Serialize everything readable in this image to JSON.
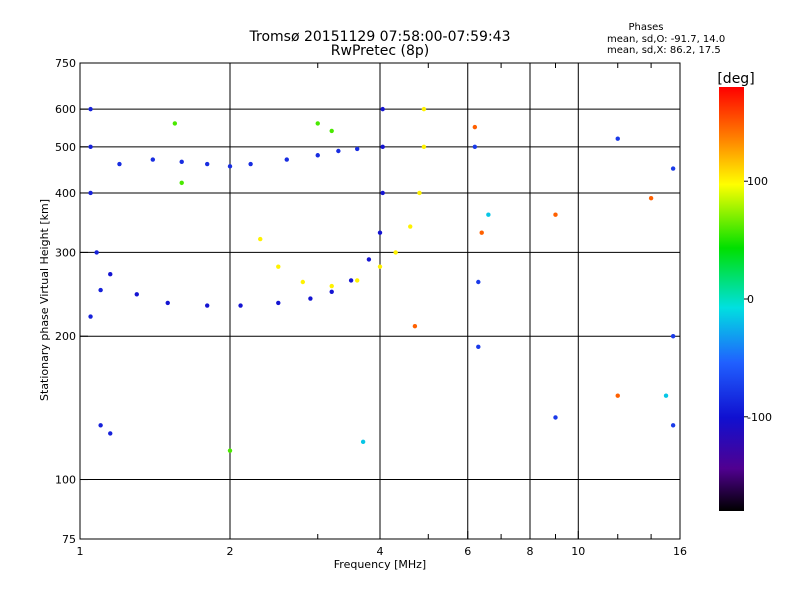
{
  "chart_data": {
    "type": "scatter",
    "title": "Tromsø 20151129 07:58:00-07:59:43",
    "subtitle": "RwPretec (8p)",
    "stats": {
      "header": "Phases",
      "line_o": "mean, sd,O: -91.7, 14.0",
      "line_x": "mean, sd,X: 86.2, 17.5"
    },
    "xlabel": "Frequency [MHz]",
    "ylabel": "Stationary phase Virtual Height [km]",
    "xscale": "log",
    "yscale": "log",
    "xlim": [
      1,
      16
    ],
    "ylim": [
      75,
      750
    ],
    "xticks": [
      1,
      2,
      4,
      6,
      8,
      10,
      16
    ],
    "xtick_labels": [
      "1",
      "2",
      "4",
      "6",
      "8",
      "10",
      "16"
    ],
    "xminor": [
      3,
      5,
      7,
      9,
      12,
      14
    ],
    "yticks": [
      75,
      100,
      200,
      300,
      400,
      500,
      600,
      750
    ],
    "ytick_labels": [
      "75",
      "100",
      "200",
      "300",
      "400",
      "500",
      "600",
      "750"
    ],
    "colorbar": {
      "label": "[deg]",
      "range": [
        -180,
        180
      ],
      "ticks": [
        100,
        0,
        -100
      ],
      "tick_labels": [
        "100",
        "0",
        "-100"
      ]
    },
    "grid": true,
    "series": [
      {
        "color_value": -100,
        "points": [
          [
            1.2,
            460
          ],
          [
            1.4,
            470
          ],
          [
            1.6,
            465
          ],
          [
            1.8,
            460
          ],
          [
            2.0,
            455
          ],
          [
            2.2,
            460
          ],
          [
            2.6,
            470
          ],
          [
            3.0,
            480
          ],
          [
            3.3,
            490
          ],
          [
            3.6,
            495
          ]
        ]
      },
      {
        "color_value": -110,
        "points": [
          [
            1.15,
            270
          ],
          [
            1.3,
            245
          ],
          [
            1.5,
            235
          ],
          [
            1.8,
            232
          ],
          [
            2.1,
            232
          ],
          [
            2.5,
            235
          ],
          [
            2.9,
            240
          ],
          [
            3.2,
            248
          ],
          [
            3.5,
            262
          ],
          [
            3.8,
            290
          ],
          [
            4.0,
            330
          ],
          [
            4.05,
            400
          ],
          [
            4.05,
            500
          ],
          [
            4.05,
            600
          ]
        ]
      },
      {
        "color_value": -105,
        "points": [
          [
            1.05,
            400
          ],
          [
            1.05,
            500
          ],
          [
            1.05,
            600
          ],
          [
            1.08,
            300
          ],
          [
            1.1,
            250
          ],
          [
            1.05,
            220
          ],
          [
            1.1,
            130
          ],
          [
            1.15,
            125
          ]
        ]
      },
      {
        "color_value": 95,
        "points": [
          [
            2.3,
            320
          ],
          [
            2.5,
            280
          ],
          [
            2.8,
            260
          ],
          [
            3.2,
            255
          ],
          [
            3.6,
            262
          ],
          [
            4.0,
            280
          ],
          [
            4.3,
            300
          ],
          [
            4.6,
            340
          ],
          [
            4.8,
            400
          ],
          [
            4.9,
            500
          ],
          [
            4.9,
            600
          ]
        ]
      },
      {
        "color_value": 40,
        "points": [
          [
            1.55,
            560
          ],
          [
            1.6,
            420
          ],
          [
            3.0,
            560
          ],
          [
            3.2,
            540
          ],
          [
            2.0,
            115
          ]
        ]
      },
      {
        "color_value": -95,
        "points": [
          [
            6.2,
            500
          ],
          [
            6.3,
            260
          ],
          [
            6.3,
            190
          ],
          [
            12.0,
            520
          ],
          [
            15.5,
            450
          ],
          [
            15.5,
            200
          ],
          [
            15.5,
            130
          ],
          [
            9.0,
            135
          ]
        ]
      },
      {
        "color_value": 150,
        "points": [
          [
            6.2,
            550
          ],
          [
            6.4,
            330
          ],
          [
            9.0,
            360
          ],
          [
            12.0,
            150
          ],
          [
            14.0,
            390
          ],
          [
            4.7,
            210
          ]
        ]
      },
      {
        "color_value": -40,
        "points": [
          [
            3.7,
            120
          ],
          [
            6.6,
            360
          ],
          [
            15.0,
            150
          ]
        ]
      }
    ]
  }
}
